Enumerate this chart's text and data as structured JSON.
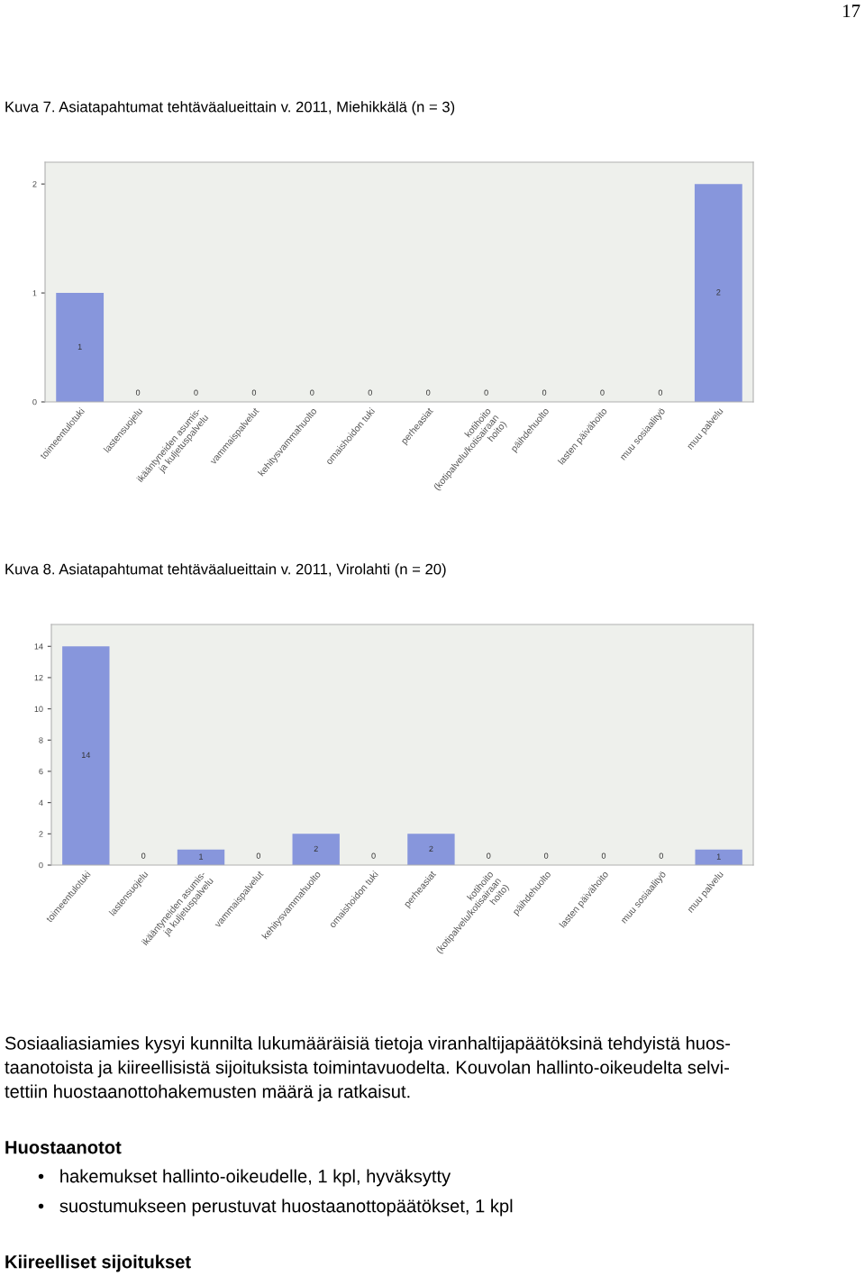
{
  "chart_data": [
    {
      "type": "bar",
      "title": "Kuva 7. Asiatapahtumat tehtäväalueittain v. 2011, Miehikkälä (n = 3)",
      "categories": [
        "toimeentulotuki",
        "lastensuojelu",
        "ikääntyneiden asumis-\nja kuljetuspalvelu",
        "vammaispalvelut",
        "kehitysvammahuolto",
        "omaishoidon tuki",
        "perheasiat",
        "kotihoito\n(kotipalvelu/kotisairaan\nhoito)",
        "päihdehuolto",
        "lasten päivähoito",
        "muu sosiaalityö",
        "muu palvelu"
      ],
      "values": [
        1,
        0,
        0,
        0,
        0,
        0,
        0,
        0,
        0,
        0,
        0,
        2
      ],
      "color": "#8796dc",
      "ylim": [
        0,
        2.2
      ],
      "yticks": [
        0,
        1,
        2
      ],
      "grid": false,
      "data_labels": true,
      "annotations": [
        "17"
      ]
    },
    {
      "type": "bar",
      "title": "Kuva 8. Asiatapahtumat tehtäväalueittain v. 2011, Virolahti (n = 20)",
      "categories": [
        "toimeentulotuki",
        "lastensuojelu",
        "ikääntyneiden asumis-\nja kuljetuspalvelu",
        "vammaispalvelut",
        "kehitysvammahuolto",
        "omaishoidon tuki",
        "perheasiat",
        "kotihoito\n(kotipalvelu/kotisairaan\nhoito)",
        "päihdehuolto",
        "lasten päivähoito",
        "muu sosiaalityö",
        "muu palvelu"
      ],
      "values": [
        14,
        0,
        1,
        0,
        2,
        0,
        2,
        0,
        0,
        0,
        0,
        1
      ],
      "color": "#8796dc",
      "ylim": [
        0,
        15.4
      ],
      "yticks": [
        0,
        2,
        4,
        6,
        8,
        10,
        12,
        14
      ],
      "grid": false,
      "data_labels": true,
      "annotations": [
        "Sosiaaliasiamies kysyi kunnilta lukumääräisiä tietoja viranhaltijapäätöksinä tehdyistä huos-\ntaanotoista ja kiireellisistä sijoituksista toimintavuodelta. Kouvolan hallinto-oikeudelta selvi-\ntettiin huostaanottohakemusten määrä ja ratkaisut.",
        "Huostaanotot",
        "•   hakemukset hallinto-oikeudelle, 1 kpl, hyväksytty",
        "•   suostumukseen perustuvat huostaanottopäätökset, 1 kpl",
        "Kiireelliset sijoitukset"
      ]
    }
  ]
}
